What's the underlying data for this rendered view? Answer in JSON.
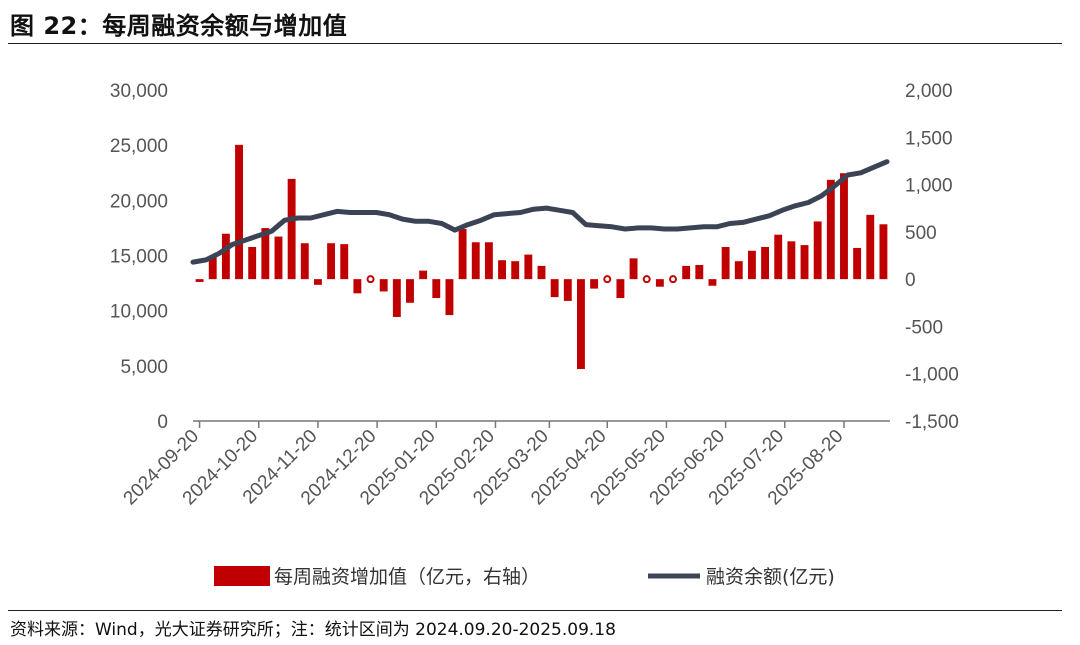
{
  "header": {
    "title": "图 22：每周融资余额与增加值"
  },
  "footer": {
    "source": "资料来源：Wind，光大证券研究所；注：统计区间为 2024.09.20-2025.09.18"
  },
  "colors": {
    "bar": "#C00000",
    "line": "#3B4354",
    "axis": "#777777"
  },
  "chart_data": {
    "type": "bar",
    "title": "每周融资余额与增加值",
    "left_axis": {
      "label": "",
      "ylim": [
        0,
        30000
      ],
      "ticks": [
        "30,000",
        "25,000",
        "20,000",
        "15,000",
        "10,000",
        "5,000",
        "0"
      ],
      "tick_values": [
        30000,
        25000,
        20000,
        15000,
        10000,
        5000,
        0
      ]
    },
    "right_axis": {
      "label": "",
      "ylim": [
        -1500,
        2000
      ],
      "ticks": [
        "2,000",
        "1,500",
        "1,000",
        "500",
        "0",
        "-500",
        "-1,000",
        "-1,500"
      ],
      "tick_values": [
        2000,
        1500,
        1000,
        500,
        0,
        -500,
        -1000,
        -1500
      ]
    },
    "x_ticks": [
      {
        "label": "2024-09-20",
        "week": 0
      },
      {
        "label": "2024-10-20",
        "week": 4.5
      },
      {
        "label": "2024-11-20",
        "week": 9
      },
      {
        "label": "2024-12-20",
        "week": 13.5
      },
      {
        "label": "2025-01-20",
        "week": 18
      },
      {
        "label": "2025-02-20",
        "week": 22.5
      },
      {
        "label": "2025-03-20",
        "week": 26.6
      },
      {
        "label": "2025-04-20",
        "week": 31
      },
      {
        "label": "2025-05-20",
        "week": 35.5
      },
      {
        "label": "2025-06-20",
        "week": 40
      },
      {
        "label": "2025-07-20",
        "week": 44.5
      },
      {
        "label": "2025-08-20",
        "week": 49
      }
    ],
    "series": [
      {
        "name": "每周融资增加值（亿元，右轴）",
        "type": "bar",
        "axis": "right",
        "values": [
          -30,
          250,
          480,
          1420,
          340,
          540,
          450,
          1060,
          380,
          -60,
          380,
          370,
          -150,
          10,
          -130,
          -400,
          -250,
          90,
          -200,
          -380,
          530,
          390,
          390,
          200,
          190,
          260,
          140,
          -190,
          -230,
          -950,
          -100,
          10,
          -200,
          220,
          10,
          -80,
          10,
          140,
          150,
          -70,
          340,
          190,
          300,
          340,
          470,
          400,
          360,
          610,
          1050,
          1120,
          330,
          680,
          580
        ]
      },
      {
        "name": "融资余额(亿元)",
        "type": "line",
        "axis": "left",
        "values": [
          14400,
          14600,
          15200,
          16000,
          16400,
          16800,
          17200,
          18200,
          18400,
          18400,
          18700,
          19000,
          18900,
          18900,
          18900,
          18700,
          18300,
          18100,
          18100,
          17900,
          17300,
          17800,
          18200,
          18700,
          18800,
          18900,
          19200,
          19300,
          19100,
          18900,
          17800,
          17700,
          17600,
          17400,
          17500,
          17500,
          17400,
          17400,
          17500,
          17600,
          17600,
          17900,
          18000,
          18300,
          18600,
          19100,
          19500,
          19800,
          20400,
          21300,
          22300,
          22500,
          23000,
          23500
        ]
      }
    ],
    "legend": {
      "position": "bottom",
      "entries": [
        "每周融资增加值（亿元，右轴）",
        "融资余额(亿元)"
      ]
    }
  }
}
